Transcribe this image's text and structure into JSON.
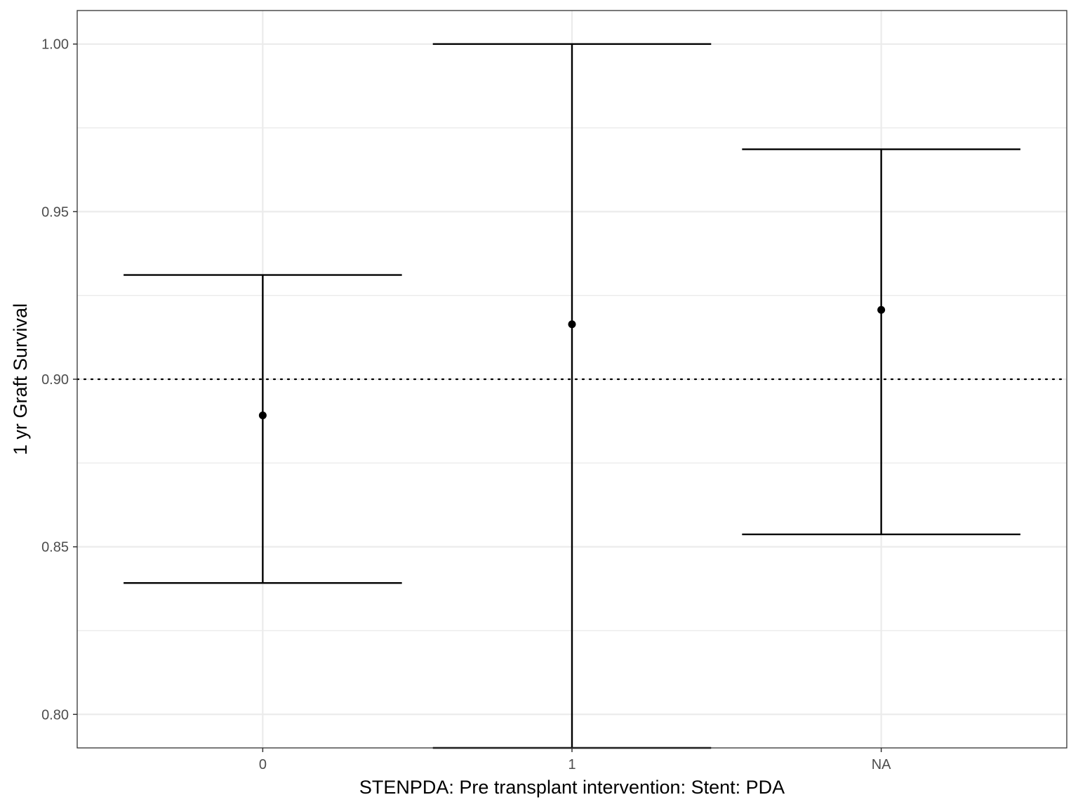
{
  "chart_data": {
    "type": "errorbar",
    "xlabel": "STENPDA: Pre transplant intervention: Stent: PDA",
    "ylabel": "1 yr Graft Survival",
    "categories": [
      "0",
      "1",
      "NA"
    ],
    "series": [
      {
        "estimate": [
          0.8892,
          0.9164,
          0.9207
        ],
        "lower": [
          0.8392,
          0.79,
          0.8537
        ],
        "upper": [
          0.9311,
          1.0,
          0.9686
        ]
      }
    ],
    "reference_line": {
      "y": 0.9,
      "style": "dotted"
    },
    "ylim": [
      0.79,
      1.01
    ],
    "yticks": [
      0.8,
      0.85,
      0.9,
      0.95,
      1.0
    ],
    "ytick_labels": [
      "0.80",
      "0.85",
      "0.90",
      "0.95",
      "1.00"
    ],
    "grid": true,
    "legend": "none",
    "colors": {
      "marks": "#000000",
      "grid": "#ebebeb",
      "panel_border": "#333333"
    }
  }
}
